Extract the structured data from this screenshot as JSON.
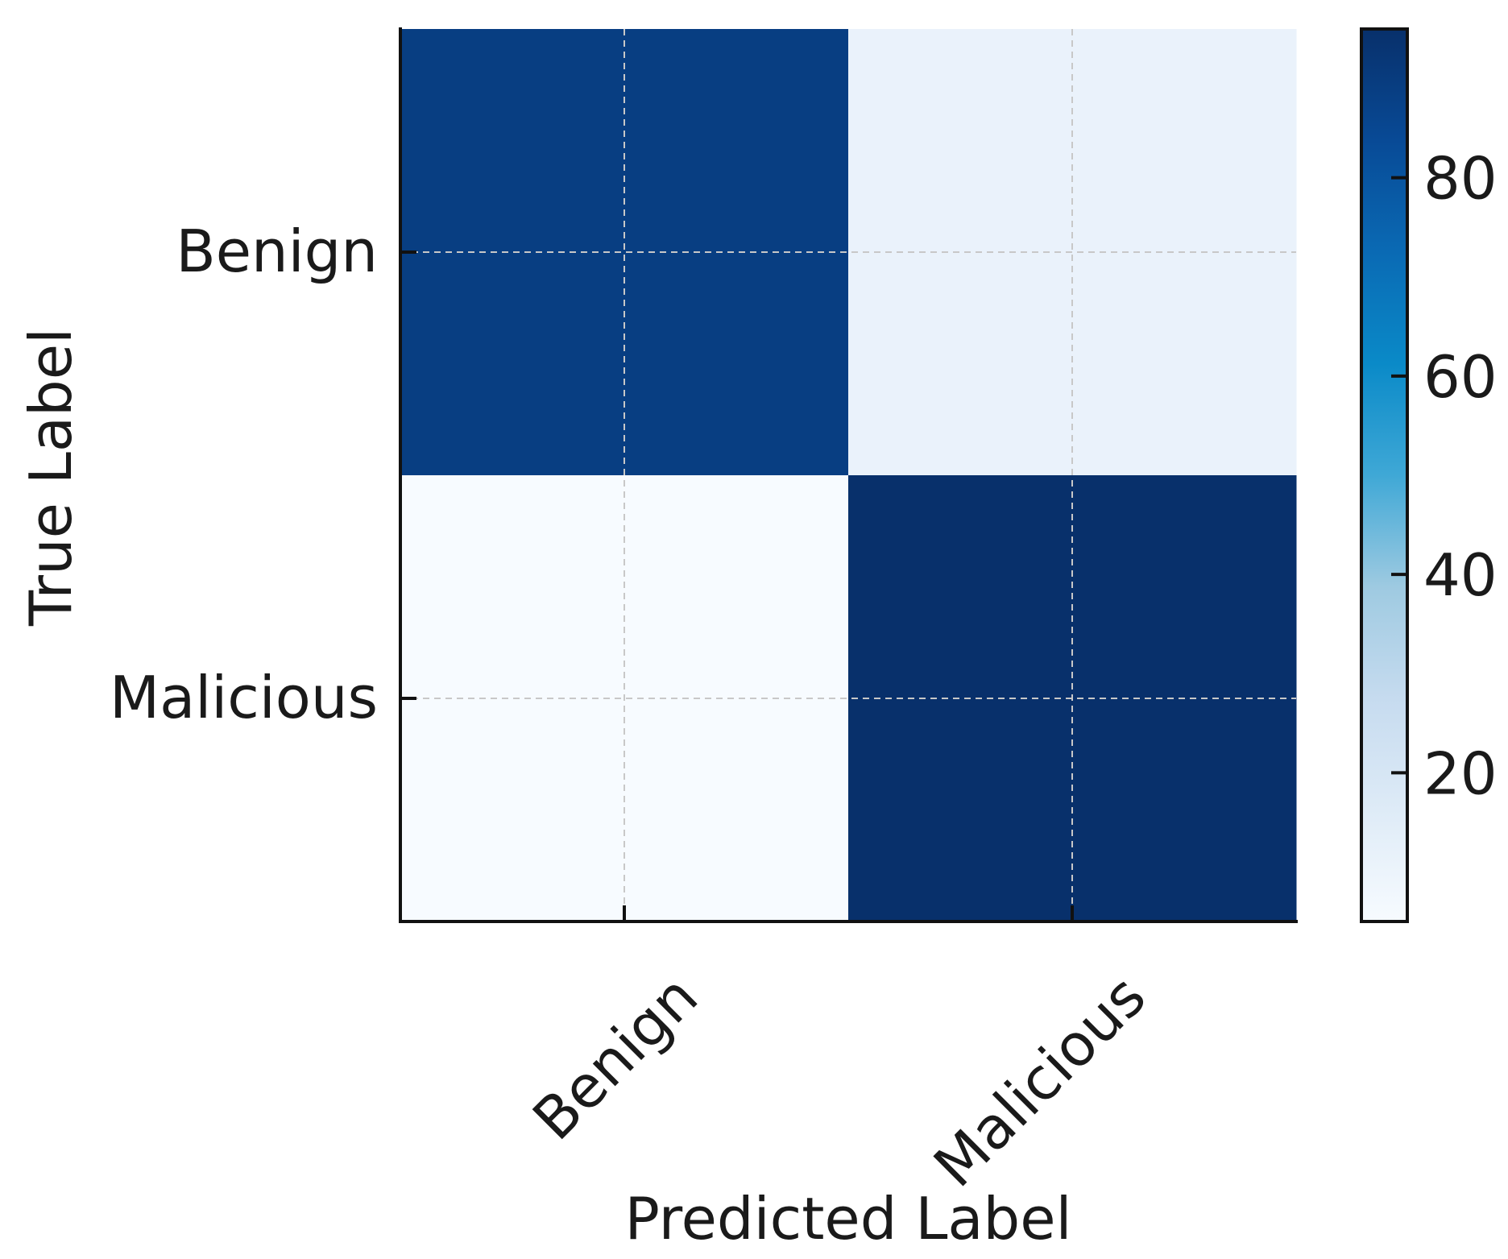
{
  "chart_data": {
    "type": "heatmap",
    "title": "",
    "xlabel": "Predicted Label",
    "ylabel": "True Label",
    "x_categories": [
      "Benign",
      "Malicious"
    ],
    "y_categories": [
      "Benign",
      "Malicious"
    ],
    "values": [
      [
        89,
        11
      ],
      [
        5,
        95
      ]
    ],
    "colormap": "Blues",
    "colorbar": {
      "min": 5,
      "max": 95,
      "ticks": [
        20,
        40,
        60,
        80
      ]
    },
    "grid": true,
    "grid_style": "dashed",
    "x_tick_rotation": -45
  }
}
